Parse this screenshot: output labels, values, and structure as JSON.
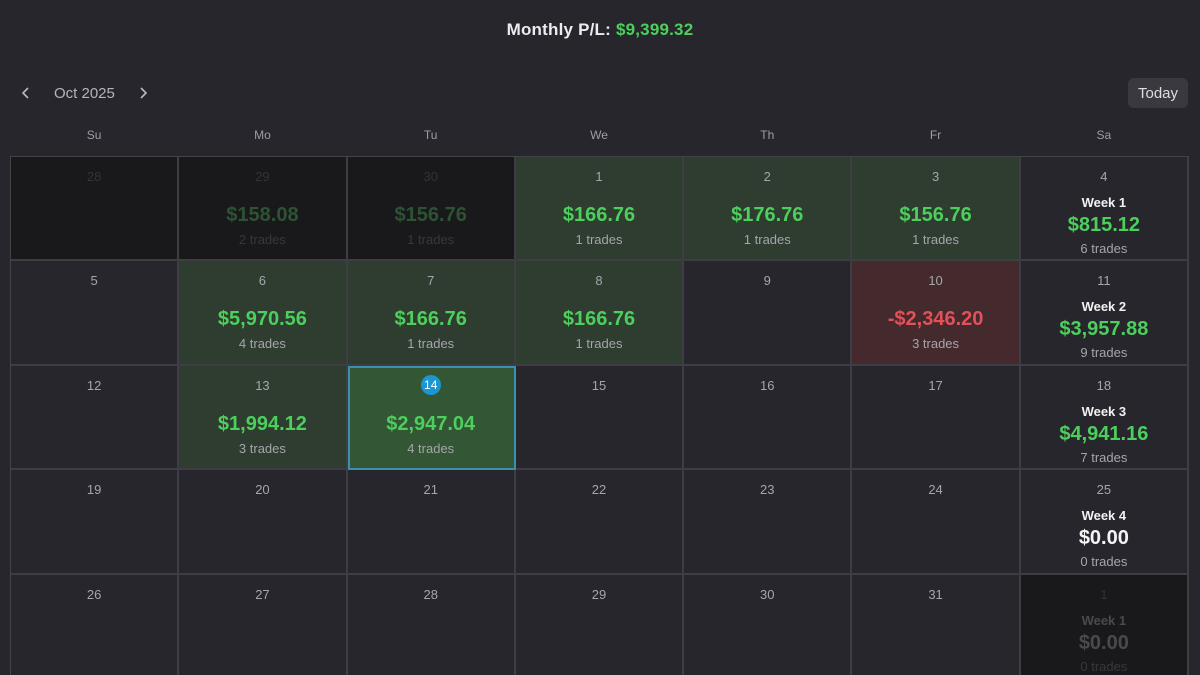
{
  "header": {
    "label": "Monthly P/L:",
    "value": "$9,399.32"
  },
  "nav": {
    "prev_icon": "chevron-left-icon",
    "next_icon": "chevron-right-icon",
    "month": "Oct 2025",
    "today": "Today"
  },
  "days_of_week": [
    "Su",
    "Mo",
    "Tu",
    "We",
    "Th",
    "Fr",
    "Sa"
  ],
  "colors": {
    "profit": "#4ccf5c",
    "loss": "#e0515a",
    "today_ring": "#1b96d3",
    "profit_bg": "#2f3c30",
    "loss_bg": "#442a2d"
  },
  "weeks": [
    {
      "days": [
        {
          "day": "28",
          "outside": true
        },
        {
          "day": "29",
          "outside": true,
          "pl": "$158.08",
          "trades": "2 trades"
        },
        {
          "day": "30",
          "outside": true,
          "pl": "$156.76",
          "trades": "1 trades"
        },
        {
          "day": "1",
          "pl": "$166.76",
          "trades": "1 trades",
          "status": "green"
        },
        {
          "day": "2",
          "pl": "$176.76",
          "trades": "1 trades",
          "status": "green"
        },
        {
          "day": "3",
          "pl": "$156.76",
          "trades": "1 trades",
          "status": "green"
        }
      ],
      "summary": {
        "day": "4",
        "label": "Week 1",
        "pl": "$815.12",
        "trades": "6 trades"
      }
    },
    {
      "days": [
        {
          "day": "5"
        },
        {
          "day": "6",
          "pl": "$5,970.56",
          "trades": "4 trades",
          "status": "green"
        },
        {
          "day": "7",
          "pl": "$166.76",
          "trades": "1 trades",
          "status": "green"
        },
        {
          "day": "8",
          "pl": "$166.76",
          "trades": "1 trades",
          "status": "green"
        },
        {
          "day": "9"
        },
        {
          "day": "10",
          "pl": "-$2,346.20",
          "trades": "3 trades",
          "status": "red"
        }
      ],
      "summary": {
        "day": "11",
        "label": "Week 2",
        "pl": "$3,957.88",
        "trades": "9 trades"
      }
    },
    {
      "days": [
        {
          "day": "12"
        },
        {
          "day": "13",
          "pl": "$1,994.12",
          "trades": "3 trades",
          "status": "green"
        },
        {
          "day": "14",
          "pl": "$2,947.04",
          "trades": "4 trades",
          "status": "today"
        },
        {
          "day": "15"
        },
        {
          "day": "16"
        },
        {
          "day": "17"
        }
      ],
      "summary": {
        "day": "18",
        "label": "Week 3",
        "pl": "$4,941.16",
        "trades": "7 trades"
      }
    },
    {
      "days": [
        {
          "day": "19"
        },
        {
          "day": "20"
        },
        {
          "day": "21"
        },
        {
          "day": "22"
        },
        {
          "day": "23"
        },
        {
          "day": "24"
        }
      ],
      "summary": {
        "day": "25",
        "label": "Week 4",
        "pl": "$0.00",
        "trades": "0 trades",
        "zero": true
      }
    },
    {
      "days": [
        {
          "day": "26"
        },
        {
          "day": "27"
        },
        {
          "day": "28"
        },
        {
          "day": "29"
        },
        {
          "day": "30"
        },
        {
          "day": "31"
        }
      ],
      "summary": {
        "day": "1",
        "label": "Week 1",
        "pl": "$0.00",
        "trades": "0 trades",
        "zero": true,
        "outside": true
      }
    }
  ]
}
